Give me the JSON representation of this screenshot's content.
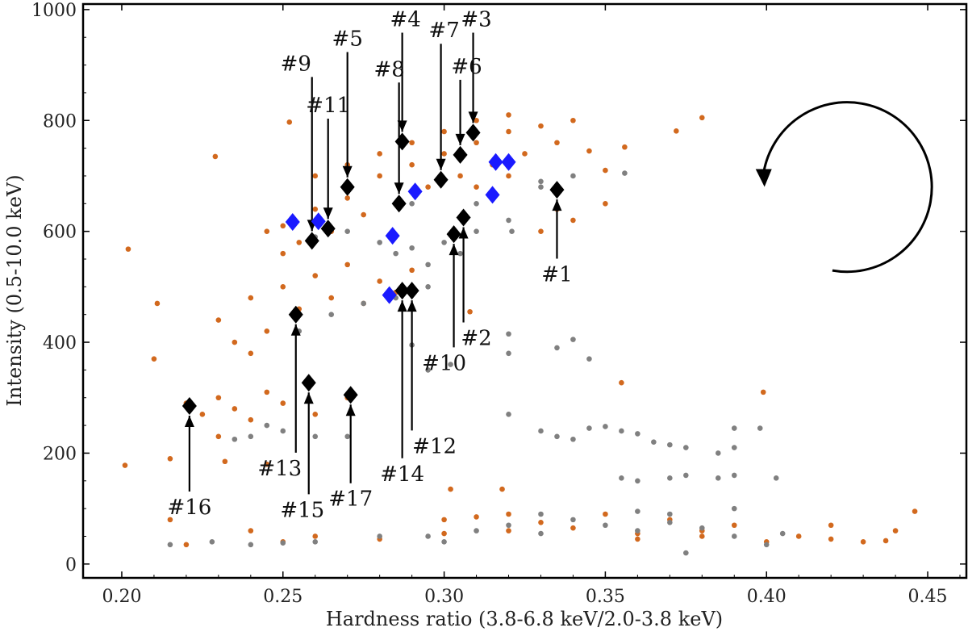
{
  "chart_data": {
    "type": "scatter",
    "title": "",
    "xlabel": "Hardness ratio (3.8-6.8 keV/2.0-3.8 keV)",
    "ylabel": "Intensity (0.5-10.0 keV)",
    "xlim": [
      0.188,
      0.462
    ],
    "ylim": [
      -25,
      1010
    ],
    "xticks": [
      "0.20",
      "0.25",
      "0.30",
      "0.35",
      "0.40",
      "0.45"
    ],
    "yticks": [
      "0",
      "200",
      "400",
      "600",
      "800",
      "1000"
    ],
    "grid": false,
    "legend": "none",
    "colors": {
      "orange": "#d2691e",
      "gray": "#808080",
      "black": "#000000",
      "blue": "#1a1aff"
    },
    "series": [
      {
        "color": "#d2691e",
        "marker": "circle",
        "points": [
          [
            0.25,
            610
          ],
          [
            0.26,
            640
          ],
          [
            0.27,
            660
          ],
          [
            0.28,
            700
          ],
          [
            0.29,
            720
          ],
          [
            0.3,
            740
          ],
          [
            0.31,
            760
          ],
          [
            0.32,
            780
          ],
          [
            0.33,
            790
          ],
          [
            0.34,
            800
          ],
          [
            0.255,
            580
          ],
          [
            0.265,
            600
          ],
          [
            0.275,
            630
          ],
          [
            0.285,
            650
          ],
          [
            0.295,
            680
          ],
          [
            0.305,
            700
          ],
          [
            0.315,
            720
          ],
          [
            0.325,
            740
          ],
          [
            0.335,
            760
          ],
          [
            0.26,
            700
          ],
          [
            0.27,
            720
          ],
          [
            0.28,
            740
          ],
          [
            0.29,
            760
          ],
          [
            0.3,
            780
          ],
          [
            0.31,
            800
          ],
          [
            0.32,
            810
          ],
          [
            0.245,
            600
          ],
          [
            0.25,
            560
          ],
          [
            0.24,
            480
          ],
          [
            0.25,
            500
          ],
          [
            0.26,
            520
          ],
          [
            0.27,
            540
          ],
          [
            0.28,
            510
          ],
          [
            0.29,
            530
          ],
          [
            0.23,
            440
          ],
          [
            0.235,
            400
          ],
          [
            0.24,
            380
          ],
          [
            0.245,
            420
          ],
          [
            0.255,
            460
          ],
          [
            0.265,
            480
          ],
          [
            0.275,
            470
          ],
          [
            0.285,
            490
          ],
          [
            0.23,
            300
          ],
          [
            0.235,
            280
          ],
          [
            0.24,
            260
          ],
          [
            0.25,
            290
          ],
          [
            0.26,
            270
          ],
          [
            0.27,
            300
          ],
          [
            0.245,
            310
          ],
          [
            0.225,
            270
          ],
          [
            0.23,
            230
          ],
          [
            0.22,
            290
          ],
          [
            0.202,
            568
          ],
          [
            0.211,
            470
          ],
          [
            0.21,
            370
          ],
          [
            0.201,
            178
          ],
          [
            0.229,
            735
          ],
          [
            0.252,
            797
          ],
          [
            0.356,
            752
          ],
          [
            0.38,
            805
          ],
          [
            0.372,
            781
          ],
          [
            0.335,
            640
          ],
          [
            0.34,
            620
          ],
          [
            0.33,
            600
          ],
          [
            0.345,
            745
          ],
          [
            0.35,
            710
          ],
          [
            0.35,
            650
          ],
          [
            0.32,
            700
          ],
          [
            0.31,
            680
          ],
          [
            0.24,
            60
          ],
          [
            0.26,
            50
          ],
          [
            0.28,
            45
          ],
          [
            0.3,
            55
          ],
          [
            0.32,
            60
          ],
          [
            0.34,
            65
          ],
          [
            0.36,
            55
          ],
          [
            0.38,
            50
          ],
          [
            0.4,
            40
          ],
          [
            0.42,
            45
          ],
          [
            0.44,
            60
          ],
          [
            0.446,
            95
          ],
          [
            0.43,
            40
          ],
          [
            0.437,
            42
          ],
          [
            0.35,
            90
          ],
          [
            0.37,
            80
          ],
          [
            0.39,
            70
          ],
          [
            0.3,
            80
          ],
          [
            0.31,
            85
          ],
          [
            0.32,
            90
          ],
          [
            0.33,
            75
          ],
          [
            0.25,
            40
          ],
          [
            0.22,
            35
          ],
          [
            0.215,
            80
          ],
          [
            0.36,
            45
          ],
          [
            0.38,
            60
          ],
          [
            0.41,
            50
          ],
          [
            0.42,
            70
          ],
          [
            0.399,
            310
          ],
          [
            0.355,
            327
          ],
          [
            0.302,
            135
          ],
          [
            0.318,
            135
          ],
          [
            0.308,
            455
          ],
          [
            0.232,
            185
          ],
          [
            0.215,
            190
          ],
          [
            0.245,
            180
          ]
        ]
      },
      {
        "color": "#808080",
        "marker": "circle",
        "points": [
          [
            0.26,
            590
          ],
          [
            0.27,
            600
          ],
          [
            0.28,
            580
          ],
          [
            0.29,
            570
          ],
          [
            0.3,
            580
          ],
          [
            0.31,
            600
          ],
          [
            0.32,
            620
          ],
          [
            0.33,
            680
          ],
          [
            0.34,
            700
          ],
          [
            0.356,
            705
          ],
          [
            0.33,
            690
          ],
          [
            0.285,
            560
          ],
          [
            0.295,
            540
          ],
          [
            0.305,
            560
          ],
          [
            0.275,
            470
          ],
          [
            0.285,
            480
          ],
          [
            0.295,
            500
          ],
          [
            0.265,
            450
          ],
          [
            0.255,
            420
          ],
          [
            0.245,
            250
          ],
          [
            0.25,
            240
          ],
          [
            0.26,
            230
          ],
          [
            0.27,
            230
          ],
          [
            0.24,
            230
          ],
          [
            0.235,
            225
          ],
          [
            0.32,
            270
          ],
          [
            0.33,
            240
          ],
          [
            0.335,
            230
          ],
          [
            0.34,
            225
          ],
          [
            0.345,
            245
          ],
          [
            0.35,
            248
          ],
          [
            0.355,
            240
          ],
          [
            0.36,
            235
          ],
          [
            0.365,
            220
          ],
          [
            0.37,
            215
          ],
          [
            0.375,
            210
          ],
          [
            0.385,
            200
          ],
          [
            0.39,
            210
          ],
          [
            0.39,
            245
          ],
          [
            0.355,
            155
          ],
          [
            0.36,
            150
          ],
          [
            0.37,
            155
          ],
          [
            0.375,
            160
          ],
          [
            0.385,
            155
          ],
          [
            0.39,
            160
          ],
          [
            0.403,
            155
          ],
          [
            0.398,
            245
          ],
          [
            0.32,
            380
          ],
          [
            0.335,
            390
          ],
          [
            0.34,
            405
          ],
          [
            0.345,
            370
          ],
          [
            0.32,
            415
          ],
          [
            0.24,
            35
          ],
          [
            0.26,
            40
          ],
          [
            0.28,
            50
          ],
          [
            0.3,
            40
          ],
          [
            0.31,
            60
          ],
          [
            0.32,
            70
          ],
          [
            0.33,
            55
          ],
          [
            0.34,
            80
          ],
          [
            0.35,
            70
          ],
          [
            0.36,
            60
          ],
          [
            0.37,
            75
          ],
          [
            0.38,
            65
          ],
          [
            0.39,
            50
          ],
          [
            0.4,
            35
          ],
          [
            0.405,
            55
          ],
          [
            0.39,
            100
          ],
          [
            0.36,
            95
          ],
          [
            0.37,
            90
          ],
          [
            0.295,
            350
          ],
          [
            0.302,
            360
          ],
          [
            0.29,
            395
          ],
          [
            0.321,
            600
          ],
          [
            0.31,
            650
          ],
          [
            0.29,
            650
          ],
          [
            0.295,
            50
          ],
          [
            0.33,
            90
          ],
          [
            0.375,
            20
          ],
          [
            0.25,
            38
          ],
          [
            0.215,
            35
          ],
          [
            0.228,
            40
          ]
        ]
      },
      {
        "color": "#000000",
        "marker": "diamond",
        "points": [
          [
            0.335,
            675
          ],
          [
            0.306,
            625
          ],
          [
            0.309,
            778
          ],
          [
            0.287,
            762
          ],
          [
            0.27,
            680
          ],
          [
            0.305,
            738
          ],
          [
            0.299,
            693
          ],
          [
            0.286,
            650
          ],
          [
            0.259,
            583
          ],
          [
            0.303,
            595
          ],
          [
            0.264,
            605
          ],
          [
            0.29,
            493
          ],
          [
            0.254,
            450
          ],
          [
            0.287,
            493
          ],
          [
            0.258,
            327
          ],
          [
            0.221,
            285
          ],
          [
            0.271,
            305
          ]
        ]
      },
      {
        "color": "#1a1aff",
        "marker": "diamond",
        "points": [
          [
            0.253,
            617
          ],
          [
            0.261,
            618
          ],
          [
            0.291,
            672
          ],
          [
            0.284,
            592
          ],
          [
            0.283,
            485
          ],
          [
            0.316,
            725
          ],
          [
            0.32,
            725
          ],
          [
            0.315,
            666
          ]
        ]
      }
    ],
    "annotations": [
      {
        "label": "#1",
        "point": [
          0.335,
          675
        ],
        "text_at": [
          0.335,
          510
        ]
      },
      {
        "label": "#2",
        "point": [
          0.306,
          625
        ],
        "text_at": [
          0.31,
          395
        ]
      },
      {
        "label": "#3",
        "point": [
          0.309,
          778
        ],
        "text_at": [
          0.31,
          970
        ]
      },
      {
        "label": "#4",
        "point": [
          0.287,
          762
        ],
        "text_at": [
          0.288,
          970
        ]
      },
      {
        "label": "#5",
        "point": [
          0.27,
          680
        ],
        "text_at": [
          0.27,
          935
        ]
      },
      {
        "label": "#6",
        "point": [
          0.305,
          738
        ],
        "text_at": [
          0.307,
          885
        ]
      },
      {
        "label": "#7",
        "point": [
          0.299,
          693
        ],
        "text_at": [
          0.3,
          950
        ]
      },
      {
        "label": "#8",
        "point": [
          0.286,
          650
        ],
        "text_at": [
          0.283,
          880
        ]
      },
      {
        "label": "#9",
        "point": [
          0.259,
          583
        ],
        "text_at": [
          0.254,
          890
        ]
      },
      {
        "label": "#10",
        "point": [
          0.303,
          595
        ],
        "text_at": [
          0.3,
          350
        ]
      },
      {
        "label": "#11",
        "point": [
          0.264,
          605
        ],
        "text_at": [
          0.264,
          815
        ]
      },
      {
        "label": "#12",
        "point": [
          0.29,
          493
        ],
        "text_at": [
          0.297,
          200
        ]
      },
      {
        "label": "#13",
        "point": [
          0.254,
          450
        ],
        "text_at": [
          0.249,
          160
        ]
      },
      {
        "label": "#14",
        "point": [
          0.287,
          493
        ],
        "text_at": [
          0.287,
          150
        ]
      },
      {
        "label": "#15",
        "point": [
          0.258,
          327
        ],
        "text_at": [
          0.256,
          85
        ]
      },
      {
        "label": "#16",
        "point": [
          0.221,
          285
        ],
        "text_at": [
          0.221,
          90
        ]
      },
      {
        "label": "#17",
        "point": [
          0.271,
          305
        ],
        "text_at": [
          0.271,
          105
        ]
      }
    ],
    "circular_arrow": {
      "center": [
        0.425,
        680
      ],
      "direction": "counter-clockwise"
    }
  }
}
